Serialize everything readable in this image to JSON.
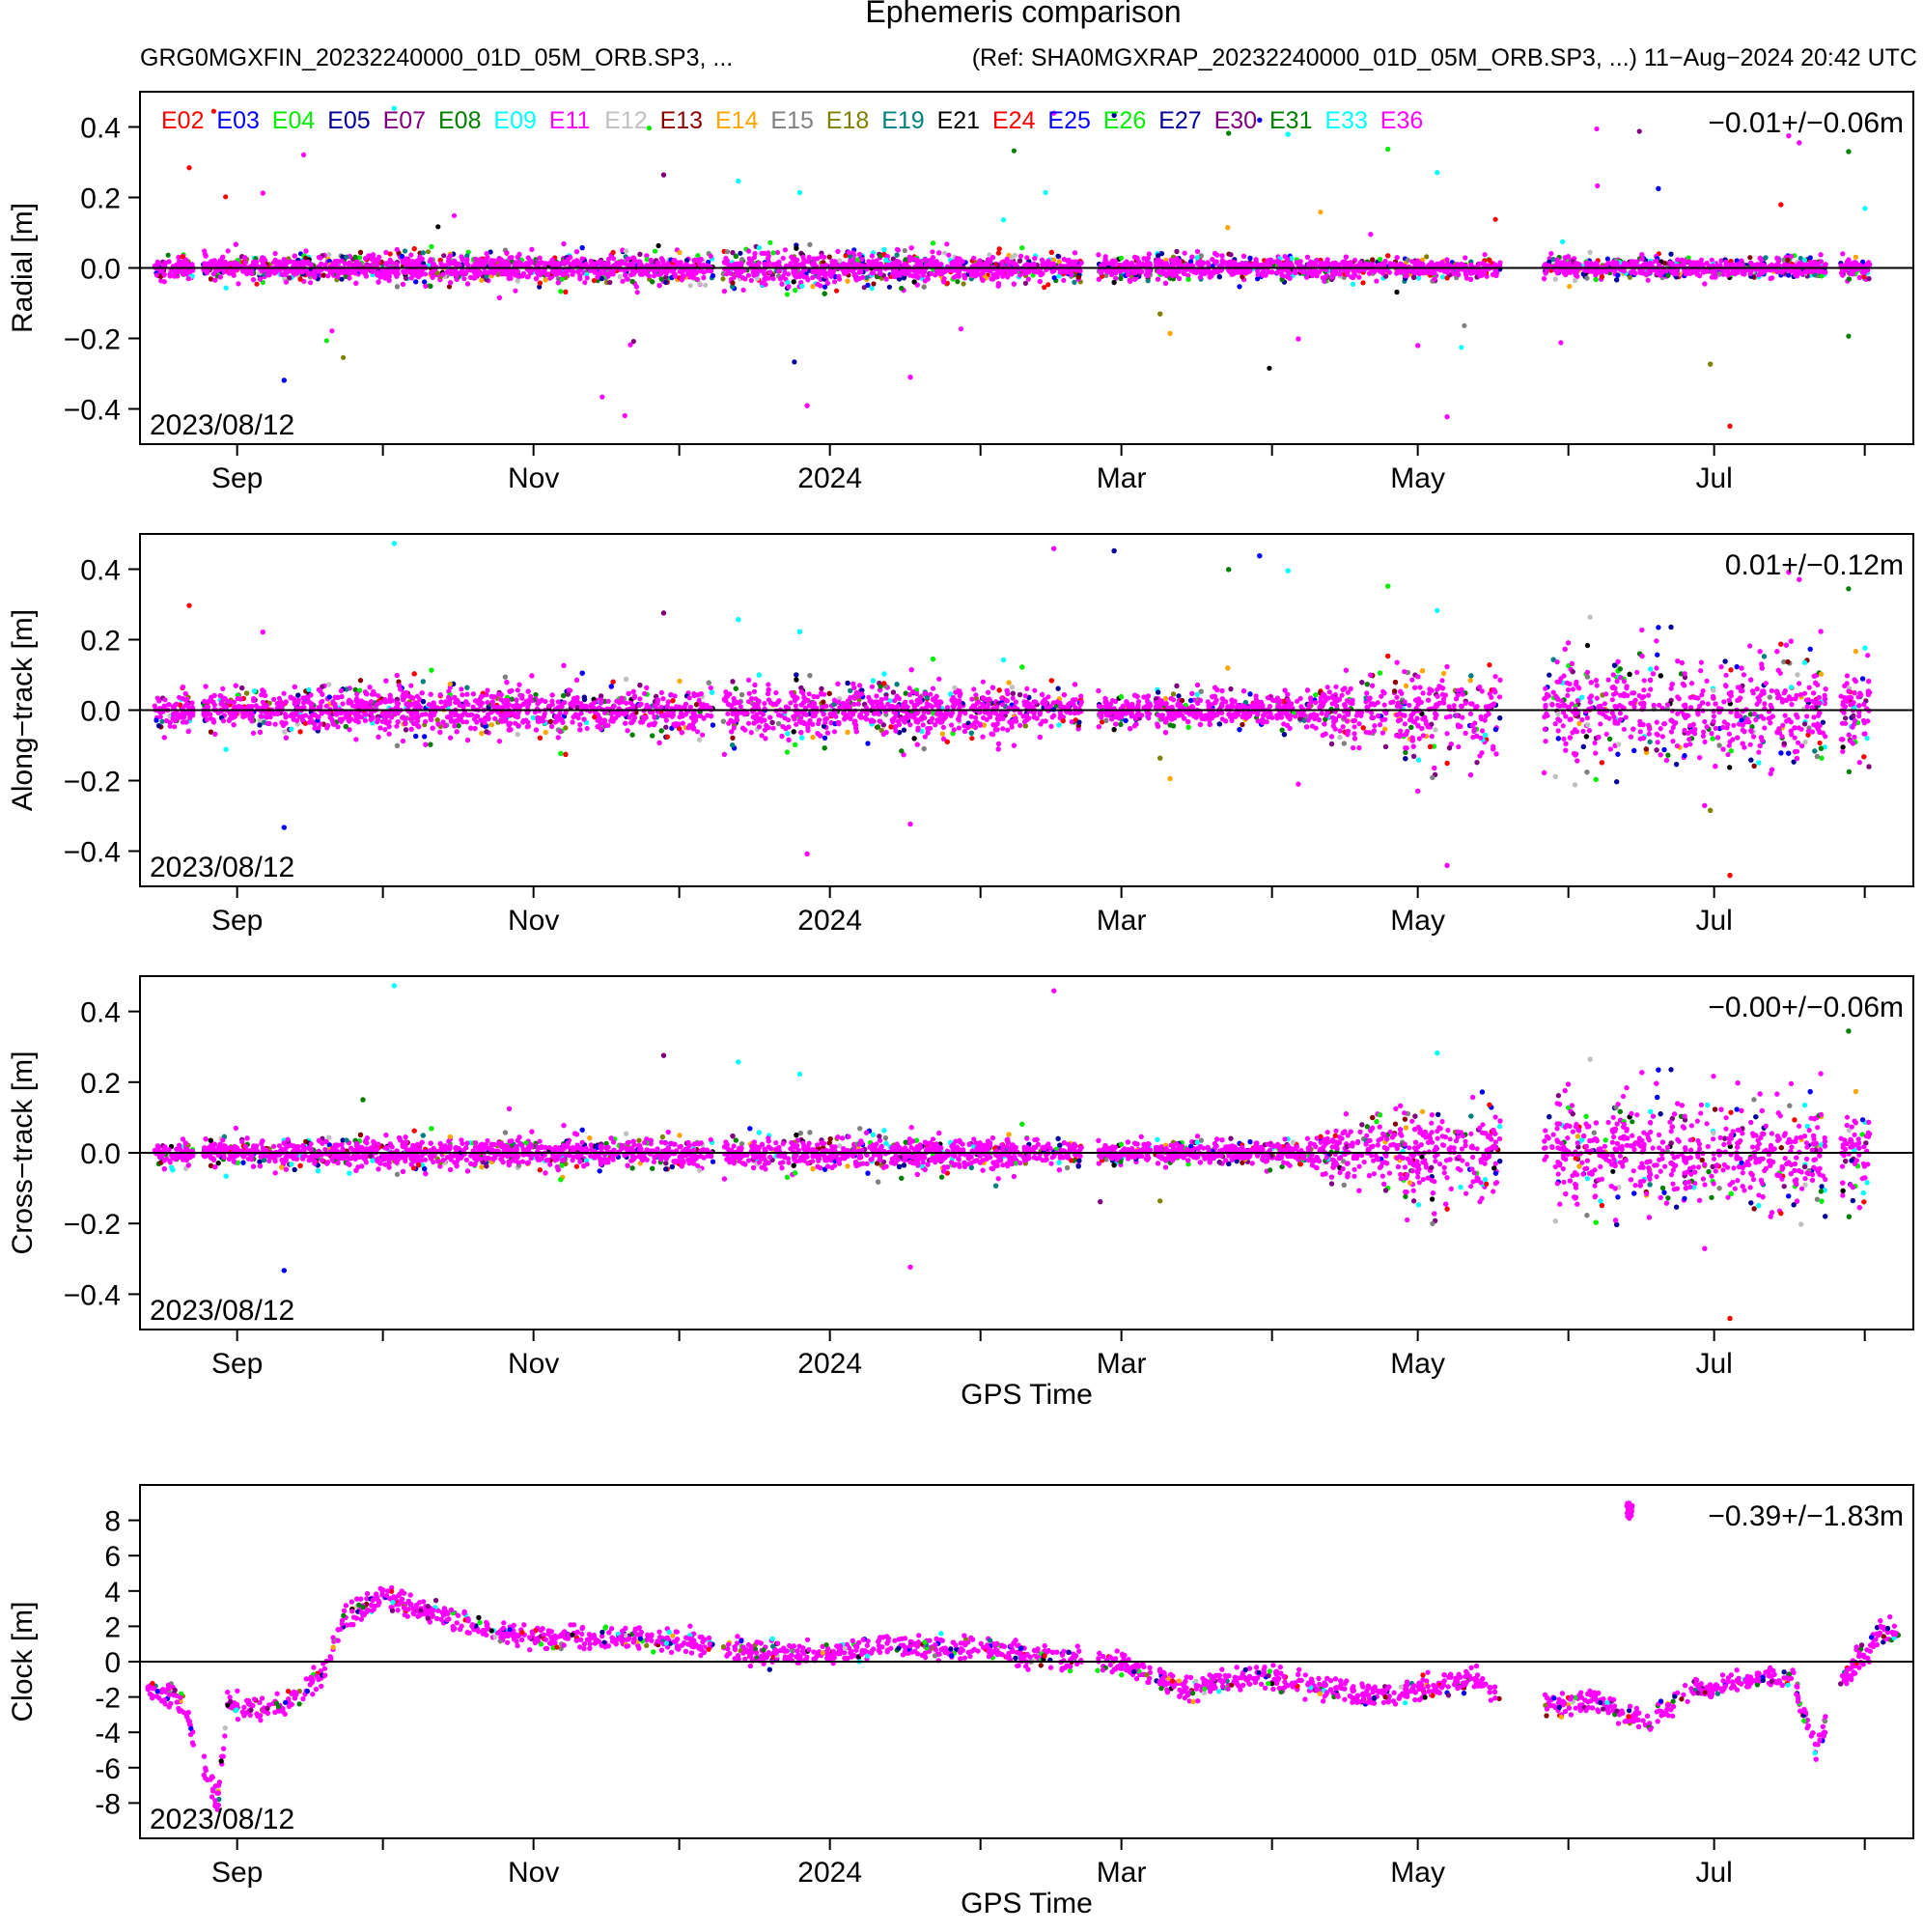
{
  "header": {
    "title": "Ephemeris comparison",
    "subtitle_left": "GRG0MGXFIN_20232240000_01D_05M_ORB.SP3, ...",
    "subtitle_right": "(Ref: SHA0MGXRAP_20232240000_01D_05M_ORB.SP3, ...) 11−Aug−2024 20:42 UTC"
  },
  "satellites": [
    {
      "name": "E02",
      "color": "#ff0000"
    },
    {
      "name": "E03",
      "color": "#0000ff"
    },
    {
      "name": "E04",
      "color": "#00ee00"
    },
    {
      "name": "E05",
      "color": "#000099"
    },
    {
      "name": "E07",
      "color": "#800080"
    },
    {
      "name": "E08",
      "color": "#008000"
    },
    {
      "name": "E09",
      "color": "#00ffff"
    },
    {
      "name": "E11",
      "color": "#ff00ff"
    },
    {
      "name": "E12",
      "color": "#c0c0c0"
    },
    {
      "name": "E13",
      "color": "#8b0000"
    },
    {
      "name": "E14",
      "color": "#ffa500"
    },
    {
      "name": "E15",
      "color": "#808080"
    },
    {
      "name": "E18",
      "color": "#808000"
    },
    {
      "name": "E19",
      "color": "#008080"
    },
    {
      "name": "E21",
      "color": "#000000"
    },
    {
      "name": "E24",
      "color": "#ff0000"
    },
    {
      "name": "E25",
      "color": "#0000ff"
    },
    {
      "name": "E26",
      "color": "#00ee00"
    },
    {
      "name": "E27",
      "color": "#000099"
    },
    {
      "name": "E30",
      "color": "#800080"
    },
    {
      "name": "E31",
      "color": "#008000"
    },
    {
      "name": "E33",
      "color": "#00ffff"
    },
    {
      "name": "E36",
      "color": "#ff00ff"
    }
  ],
  "chart_data": [
    {
      "type": "scatter",
      "ylabel": "Radial [m]",
      "xlabel": "",
      "start_label": "2023/08/12",
      "stat_label": "−0.01+/−0.06m",
      "ylim": [
        -0.5,
        0.5
      ],
      "yticks": [
        0.4,
        0.2,
        0.0,
        -0.2,
        -0.4
      ],
      "ytick_labels": [
        "0.4",
        "0.2",
        "0.0",
        "−0.2",
        "−0.4"
      ],
      "x_tick_labels": [
        "Sep",
        "Nov",
        "2024",
        "Mar",
        "May",
        "Jul"
      ],
      "show_legend": true,
      "envelope": [
        [
          0,
          0.06
        ],
        [
          120,
          0.08
        ],
        [
          140,
          0.11
        ],
        [
          150,
          0.08
        ],
        [
          200,
          0.06
        ],
        [
          300,
          0.05
        ],
        [
          340,
          0.05
        ],
        [
          360,
          0.05
        ]
      ],
      "outlier_rate": 0.03,
      "outlier_range": 0.46
    },
    {
      "type": "scatter",
      "ylabel": "Along−track [m]",
      "xlabel": "",
      "start_label": "2023/08/12",
      "stat_label": "0.01+/−0.12m",
      "ylim": [
        -0.5,
        0.5
      ],
      "yticks": [
        0.4,
        0.2,
        0.0,
        -0.2,
        -0.4
      ],
      "ytick_labels": [
        "0.4",
        "0.2",
        "0.0",
        "−0.2",
        "−0.4"
      ],
      "x_tick_labels": [
        "Sep",
        "Nov",
        "2024",
        "Mar",
        "May",
        "Jul"
      ],
      "show_legend": false,
      "envelope": [
        [
          0,
          0.12
        ],
        [
          100,
          0.14
        ],
        [
          130,
          0.16
        ],
        [
          180,
          0.15
        ],
        [
          200,
          0.08
        ],
        [
          240,
          0.1
        ],
        [
          250,
          0.22
        ],
        [
          275,
          0.3
        ],
        [
          300,
          0.3
        ],
        [
          345,
          0.3
        ],
        [
          360,
          0.25
        ]
      ],
      "outlier_rate": 0.03,
      "outlier_range": 0.48
    },
    {
      "type": "scatter",
      "ylabel": "Cross−track [m]",
      "xlabel": "GPS Time",
      "start_label": "2023/08/12",
      "stat_label": "−0.00+/−0.06m",
      "ylim": [
        -0.5,
        0.5
      ],
      "yticks": [
        0.4,
        0.2,
        0.0,
        -0.2,
        -0.4
      ],
      "ytick_labels": [
        "0.4",
        "0.2",
        "0.0",
        "−0.2",
        "−0.4"
      ],
      "x_tick_labels": [
        "Sep",
        "Nov",
        "2024",
        "Mar",
        "May",
        "Jul"
      ],
      "show_legend": false,
      "envelope": [
        [
          0,
          0.07
        ],
        [
          120,
          0.09
        ],
        [
          180,
          0.1
        ],
        [
          200,
          0.05
        ],
        [
          240,
          0.07
        ],
        [
          250,
          0.22
        ],
        [
          275,
          0.32
        ],
        [
          300,
          0.3
        ],
        [
          345,
          0.3
        ],
        [
          360,
          0.27
        ]
      ],
      "outlier_rate": 0.015,
      "outlier_range": 0.48
    },
    {
      "type": "scatter",
      "ylabel": "Clock [m]",
      "xlabel": "GPS Time",
      "start_label": "2023/08/12",
      "stat_label": "−0.39+/−1.83m",
      "ylim": [
        -10,
        10
      ],
      "yticks": [
        8,
        6,
        4,
        2,
        0,
        -2,
        -4,
        -6,
        -8
      ],
      "ytick_labels": [
        "8",
        "6",
        "4",
        "2",
        "0",
        "-2",
        "-4",
        "-6",
        "-8"
      ],
      "x_tick_labels": [
        "Sep",
        "Nov",
        "2024",
        "Mar",
        "May",
        "Jul"
      ],
      "show_legend": false,
      "trend": [
        [
          0,
          -1.5
        ],
        [
          8,
          -1.8
        ],
        [
          12,
          -5
        ],
        [
          16,
          -8
        ],
        [
          18,
          -2.5
        ],
        [
          30,
          -2.5
        ],
        [
          38,
          -0.5
        ],
        [
          42,
          2.5
        ],
        [
          50,
          3.7
        ],
        [
          60,
          2.8
        ],
        [
          75,
          1.5
        ],
        [
          110,
          1.2
        ],
        [
          118,
          1.0
        ],
        [
          125,
          0.5
        ],
        [
          140,
          0.4
        ],
        [
          155,
          1.0
        ],
        [
          170,
          0.8
        ],
        [
          185,
          0.3
        ],
        [
          200,
          0.0
        ],
        [
          215,
          -1.5
        ],
        [
          230,
          -0.8
        ],
        [
          255,
          -2.0
        ],
        [
          275,
          -1.0
        ],
        [
          280,
          -2.0
        ],
        [
          290,
          -2.5
        ],
        [
          300,
          -2.2
        ],
        [
          310,
          -3.5
        ],
        [
          320,
          -1.5
        ],
        [
          340,
          -0.8
        ],
        [
          345,
          -5.0
        ],
        [
          350,
          -1.0
        ],
        [
          358,
          1.5
        ],
        [
          360,
          1.8
        ]
      ],
      "spread": 1.0
    }
  ]
}
